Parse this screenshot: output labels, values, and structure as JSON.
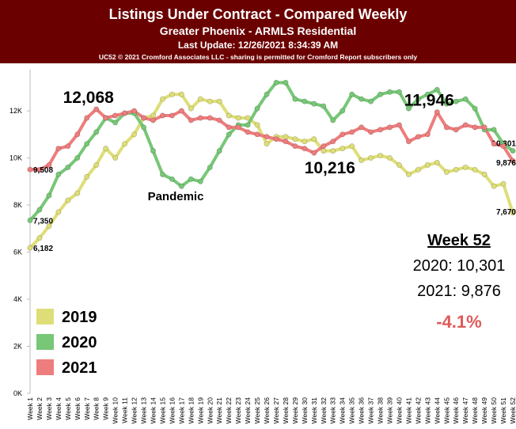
{
  "chart_data": {
    "type": "line",
    "title": "Listings Under Contract - Compared Weekly",
    "subtitle": "Greater Phoenix - ARMLS Residential",
    "update": "Last Update: 12/26/2021 8:34:39 AM",
    "credit": "UC52 © 2021 Cromford Associates LLC - sharing is permitted for Cromford Report subscribers only",
    "annotations": [
      "Pandemic"
    ],
    "summary": {
      "title": "Week 52",
      "lines": [
        "2020: 10,301",
        "2021: 9,876"
      ],
      "change": "-4.1%"
    },
    "categories": [
      "Week 1",
      "Week 2",
      "Week 3",
      "Week 4",
      "Week 5",
      "Week 6",
      "Week 7",
      "Week 8",
      "Week 9",
      "Week 10",
      "Week 11",
      "Week 12",
      "Week 13",
      "Week 14",
      "Week 15",
      "Week 16",
      "Week 17",
      "Week 18",
      "Week 19",
      "Week 20",
      "Week 21",
      "Week 22",
      "Week 23",
      "Week 24",
      "Week 25",
      "Week 26",
      "Week 27",
      "Week 28",
      "Week 29",
      "Week 30",
      "Week 31",
      "Week 32",
      "Week 33",
      "Week 34",
      "Week 35",
      "Week 36",
      "Week 37",
      "Week 38",
      "Week 39",
      "Week 40",
      "Week 41",
      "Week 42",
      "Week 43",
      "Week 44",
      "Week 45",
      "Week 46",
      "Week 47",
      "Week 48",
      "Week 49",
      "Week 50",
      "Week 51",
      "Week 52"
    ],
    "series": [
      {
        "name": "2019",
        "color": "#dede78",
        "values": [
          6182,
          6600,
          7100,
          7700,
          8200,
          8500,
          9200,
          9700,
          10400,
          10000,
          10600,
          11000,
          11700,
          11800,
          12500,
          12700,
          12700,
          12100,
          12500,
          12400,
          12400,
          11800,
          11700,
          11700,
          11400,
          10600,
          10900,
          10900,
          10800,
          10700,
          10800,
          10300,
          10300,
          10400,
          10500,
          9900,
          10000,
          10100,
          10000,
          9700,
          9300,
          9500,
          9700,
          9800,
          9400,
          9500,
          9600,
          9500,
          9300,
          8800,
          8900,
          7670
        ],
        "value_labels": {
          "0": "6,182",
          "51": "7,670"
        }
      },
      {
        "name": "2020",
        "color": "#77c777",
        "values": [
          7350,
          7800,
          8400,
          9300,
          9600,
          10000,
          10600,
          11100,
          11700,
          11500,
          11900,
          11900,
          11300,
          10300,
          9300,
          9100,
          8800,
          9100,
          9000,
          9600,
          10300,
          11000,
          11400,
          11400,
          12100,
          12700,
          13200,
          13200,
          12500,
          12400,
          12300,
          12200,
          11600,
          12000,
          12700,
          12500,
          12400,
          12700,
          12800,
          12800,
          12100,
          12500,
          12700,
          12900,
          12300,
          12400,
          12500,
          12100,
          11200,
          11200,
          10600,
          10301
        ],
        "value_labels": {
          "0": "7,350",
          "51": "10,301"
        }
      },
      {
        "name": "2021",
        "color": "#ee7d7d",
        "values": [
          9508,
          9500,
          9700,
          10400,
          10500,
          11000,
          11700,
          12068,
          11700,
          11800,
          11900,
          12000,
          11700,
          11600,
          11800,
          11800,
          12000,
          11600,
          11700,
          11700,
          11600,
          11300,
          11300,
          11100,
          11000,
          10900,
          10800,
          10700,
          10500,
          10400,
          10216,
          10500,
          10700,
          11000,
          11100,
          11300,
          11100,
          11200,
          11300,
          11400,
          10700,
          10900,
          11000,
          11946,
          11300,
          11200,
          11400,
          11300,
          11300,
          10600,
          10500,
          9876
        ],
        "value_labels": {
          "0": "9,508",
          "7": "12,068",
          "30": "10,216",
          "43": "11,946",
          "51": "9,876"
        }
      }
    ],
    "ylim": [
      0,
      13750
    ],
    "yticks": [
      {
        "value": 0,
        "label": "0K"
      },
      {
        "value": 2000,
        "label": "2K"
      },
      {
        "value": 4000,
        "label": "4K"
      },
      {
        "value": 6000,
        "label": "6K"
      },
      {
        "value": 8000,
        "label": "8K"
      },
      {
        "value": 10000,
        "label": "10K"
      },
      {
        "value": 12000,
        "label": "12K"
      }
    ],
    "grid": false
  }
}
